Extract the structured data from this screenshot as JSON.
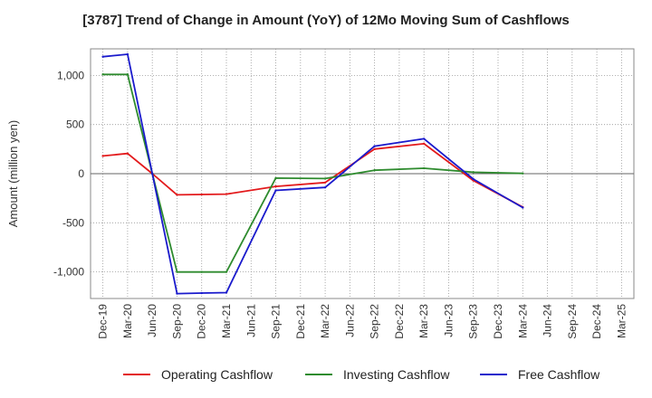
{
  "chart_data": {
    "type": "line",
    "title": "[3787]  Trend of Change in Amount (YoY) of 12Mo Moving Sum of Cashflows",
    "xlabel": "",
    "ylabel": "Amount (million yen)",
    "ylim": [
      -1270,
      1270
    ],
    "yticks": [
      1000,
      500,
      0,
      -500,
      -1000
    ],
    "ytick_labels": [
      "1,000",
      "500",
      "0",
      "-500",
      "-1,000"
    ],
    "categories": [
      "Dec-19",
      "Mar-20",
      "Jun-20",
      "Sep-20",
      "Dec-20",
      "Mar-21",
      "Jun-21",
      "Sep-21",
      "Dec-21",
      "Mar-22",
      "Jun-22",
      "Sep-22",
      "Dec-22",
      "Mar-23",
      "Jun-23",
      "Sep-23",
      "Dec-23",
      "Mar-24",
      "Jun-24",
      "Sep-24",
      "Dec-24",
      "Mar-25"
    ],
    "grid": true,
    "legend_position": "bottom",
    "series": [
      {
        "name": "Operating Cashflow",
        "color": "#e31a1c",
        "values": [
          180,
          205,
          0,
          -215,
          -212,
          -208,
          null,
          -130,
          null,
          -90,
          null,
          250,
          null,
          305,
          null,
          -70,
          null,
          -340,
          null,
          null,
          null,
          null
        ]
      },
      {
        "name": "Investing Cashflow",
        "color": "#2e8b2e",
        "values": [
          1010,
          1010,
          0,
          -1000,
          -1000,
          -1000,
          null,
          -45,
          null,
          -50,
          null,
          35,
          null,
          55,
          null,
          15,
          null,
          3,
          null,
          null,
          null,
          null
        ]
      },
      {
        "name": "Free Cashflow",
        "color": "#1a1acc",
        "values": [
          1190,
          1215,
          0,
          -1220,
          -1215,
          -1210,
          null,
          -170,
          null,
          -140,
          null,
          280,
          null,
          355,
          null,
          -55,
          null,
          -345,
          null,
          null,
          null,
          null
        ]
      }
    ]
  }
}
